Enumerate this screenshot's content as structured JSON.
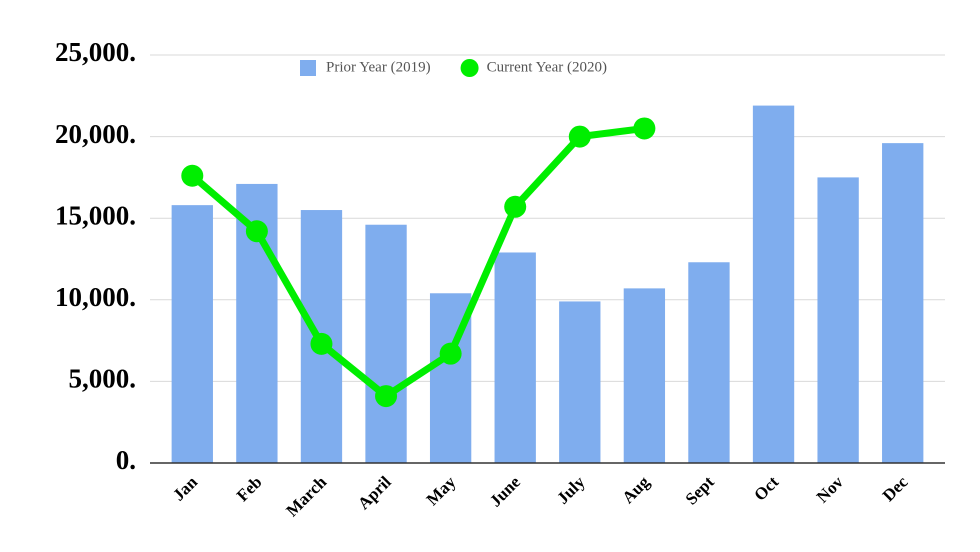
{
  "chart_data": {
    "type": "bar",
    "categories": [
      "Jan",
      "Feb",
      "March",
      "April",
      "May",
      "June",
      "July",
      "Aug",
      "Sept",
      "Oct",
      "Nov",
      "Dec"
    ],
    "series": [
      {
        "name": "Prior Year (2019)",
        "type": "bar",
        "color": "#7fadee",
        "values": [
          15800,
          17100,
          15500,
          14600,
          10400,
          12900,
          9900,
          10700,
          12300,
          21900,
          17500,
          19600
        ]
      },
      {
        "name": "Current Year (2020)",
        "type": "line",
        "color": "#00ee00",
        "values": [
          17600,
          14200,
          7300,
          4100,
          6700,
          15700,
          20000,
          20500,
          null,
          null,
          null,
          null
        ]
      }
    ],
    "ylim": [
      0,
      25000
    ],
    "yticks": [
      {
        "value": 0,
        "label": "0."
      },
      {
        "value": 5000,
        "label": "5,000."
      },
      {
        "value": 10000,
        "label": "10,000."
      },
      {
        "value": 15000,
        "label": "15,000."
      },
      {
        "value": 20000,
        "label": "20,000."
      },
      {
        "value": 25000,
        "label": "25,000."
      }
    ],
    "grid": true
  }
}
